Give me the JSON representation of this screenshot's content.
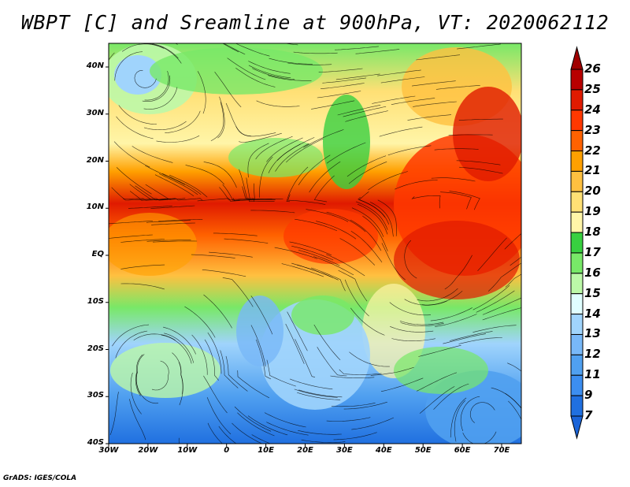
{
  "title": "WBPT [C] and Sreamline at 900hPa, VT: 2020062112",
  "y_axis": [
    "40N",
    "30N",
    "20N",
    "10N",
    "EQ",
    "10S",
    "20S",
    "30S",
    "40S"
  ],
  "x_axis": [
    "30W",
    "20W",
    "10W",
    "0",
    "10E",
    "20E",
    "30E",
    "40E",
    "50E",
    "60E",
    "70E"
  ],
  "colorbar": {
    "labels": [
      "26",
      "25",
      "24",
      "23",
      "22",
      "21",
      "20",
      "19",
      "18",
      "17",
      "16",
      "15",
      "14",
      "13",
      "12",
      "11",
      "9",
      "7"
    ],
    "colors": [
      "#b80000",
      "#e01a00",
      "#ff3800",
      "#ff6200",
      "#ffa000",
      "#ffc040",
      "#ffe075",
      "#fff5a8",
      "#38d040",
      "#78e868",
      "#bcf8a8",
      "#e0feff",
      "#a0d4fc",
      "#78b8f8",
      "#50a0f0",
      "#3c8ef0",
      "#2070e0"
    ],
    "over_color": "#a00000",
    "under_color": "#1a64d8"
  },
  "credit": "GrADS: IGES/COLA"
}
